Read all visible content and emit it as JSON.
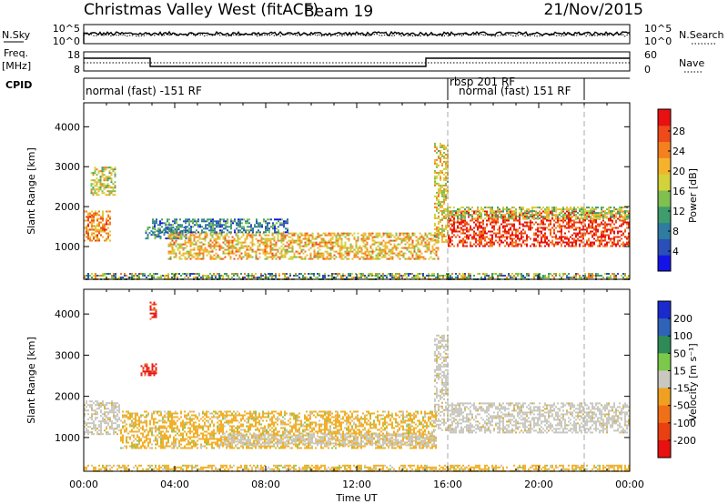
{
  "header": {
    "station": "Christmas Valley West (fitACF)",
    "beam": "Beam 19",
    "date": "21/Nov/2015"
  },
  "left_labels": {
    "nsky": "N.Sky",
    "freq_line1": "Freq.",
    "freq_line2": "[MHz]",
    "cpid": "CPID"
  },
  "right_labels": {
    "nsearch": "N.Search",
    "nave": "Nave"
  },
  "noise_panel": {
    "left_ticks": [
      "10^5",
      "10^0"
    ],
    "right_ticks": [
      "10^5",
      "10^0"
    ]
  },
  "freq_panel": {
    "left_ticks": [
      "18",
      "8"
    ],
    "right_ticks": [
      "60",
      "0"
    ]
  },
  "cpid_panel": {
    "segments": [
      {
        "label": "normal (fast) -151 RF",
        "start_hour": 0,
        "end_hour": 16
      },
      {
        "label": "rbsp 201 RF",
        "start_hour": 16,
        "end_hour": 16
      },
      {
        "label": "normal (fast) 151 RF",
        "start_hour": 16,
        "end_hour": 22
      }
    ]
  },
  "chart_data": [
    {
      "type": "heatmap",
      "name": "power",
      "ylabel": "Slant Range [km]",
      "xlabel": "",
      "x_ticks": [
        "00:00",
        "04:00",
        "08:00",
        "12:00",
        "16:00",
        "20:00",
        "00:00"
      ],
      "xlim_hours": [
        0,
        24
      ],
      "ylim_km": [
        180,
        4600
      ],
      "y_ticks": [
        1000,
        2000,
        3000,
        4000
      ],
      "colorbar": {
        "label": "Power [dB]",
        "ticks": [
          "4",
          "8",
          "12",
          "16",
          "20",
          "24",
          "28"
        ],
        "colors": [
          "#1313e8",
          "#2a4fb8",
          "#2e7da0",
          "#3f9c6b",
          "#7fc050",
          "#d2d23a",
          "#f5b32c",
          "#f4811f",
          "#ef4a1a",
          "#e81010"
        ]
      },
      "dashed_lines_hours": [
        16,
        22
      ],
      "regions": [
        {
          "x": [
            0,
            1.2
          ],
          "y": [
            1150,
            1900
          ],
          "level": 0.75
        },
        {
          "x": [
            0.3,
            1.4
          ],
          "y": [
            2300,
            3000
          ],
          "level": 0.55
        },
        {
          "x": [
            2.7,
            4.6
          ],
          "y": [
            1200,
            1500
          ],
          "level": 0.25
        },
        {
          "x": [
            3.7,
            15.6
          ],
          "y": [
            700,
            1350
          ],
          "level": 0.65
        },
        {
          "x": [
            3.0,
            9.0
          ],
          "y": [
            1350,
            1700
          ],
          "level": 0.25
        },
        {
          "x": [
            16.0,
            24.0
          ],
          "y": [
            1000,
            1900
          ],
          "level": 0.95
        },
        {
          "x": [
            16.0,
            24.0
          ],
          "y": [
            1700,
            2000
          ],
          "level": 0.5
        },
        {
          "x": [
            15.4,
            16.0
          ],
          "y": [
            1100,
            3600
          ],
          "level": 0.6
        },
        {
          "x": [
            0,
            24
          ],
          "y": [
            180,
            340
          ],
          "level": 0.45
        }
      ]
    },
    {
      "type": "heatmap",
      "name": "velocity",
      "ylabel": "Slant Range [km]",
      "xlabel": "Time UT",
      "x_ticks": [
        "00:00",
        "04:00",
        "08:00",
        "12:00",
        "16:00",
        "20:00",
        "00:00"
      ],
      "xlim_hours": [
        0,
        24
      ],
      "ylim_km": [
        180,
        4600
      ],
      "y_ticks": [
        1000,
        2000,
        3000,
        4000
      ],
      "colorbar": {
        "label": "Velocity [m s⁻¹]",
        "ticks": [
          "200",
          "100",
          "50",
          "15",
          "-15",
          "-50",
          "-100",
          "-200"
        ],
        "colors": [
          "#1a2acc",
          "#2e63b8",
          "#2e8b57",
          "#7cc84a",
          "#c8c8c0",
          "#f0a020",
          "#f07018",
          "#e84010",
          "#e81010"
        ]
      },
      "dashed_lines_hours": [
        16,
        22
      ],
      "regions": [
        {
          "x": [
            0,
            1.6
          ],
          "y": [
            1100,
            1900
          ],
          "kind": "gray"
        },
        {
          "x": [
            1.6,
            15.5
          ],
          "y": [
            750,
            1650
          ],
          "kind": "orange"
        },
        {
          "x": [
            6.0,
            15.5
          ],
          "y": [
            800,
            1100
          ],
          "kind": "gray"
        },
        {
          "x": [
            16.0,
            24.0
          ],
          "y": [
            1100,
            1850
          ],
          "kind": "gray"
        },
        {
          "x": [
            15.4,
            16.0
          ],
          "y": [
            1200,
            3500
          ],
          "kind": "gray"
        },
        {
          "x": [
            2.5,
            3.2
          ],
          "y": [
            2500,
            2800
          ],
          "kind": "red"
        },
        {
          "x": [
            2.9,
            3.2
          ],
          "y": [
            3900,
            4300
          ],
          "kind": "red"
        },
        {
          "x": [
            0,
            24
          ],
          "y": [
            180,
            340
          ],
          "kind": "orange"
        }
      ]
    }
  ]
}
